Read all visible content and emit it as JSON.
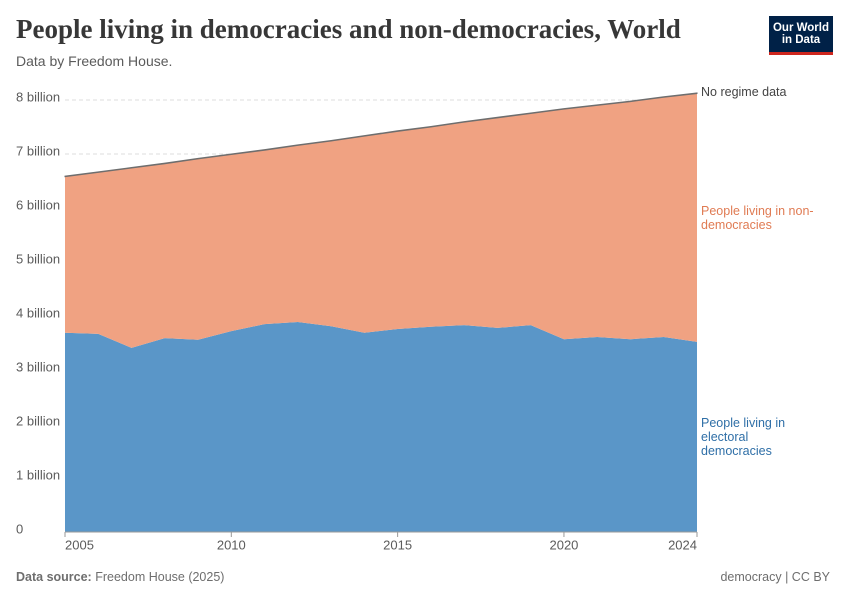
{
  "logo": "Our World in Data",
  "chart_data": {
    "type": "stacked_area",
    "title": "People living in democracies and non-democracies, World",
    "subtitle": "Data by Freedom House.",
    "source_label": "Data source:",
    "source": "Freedom House (2025)",
    "license": "democracy | CC BY",
    "x": [
      2005,
      2006,
      2007,
      2008,
      2009,
      2010,
      2011,
      2012,
      2013,
      2014,
      2015,
      2016,
      2017,
      2018,
      2019,
      2020,
      2021,
      2022,
      2023,
      2024
    ],
    "xlim": [
      2005,
      2024
    ],
    "xticks": [
      2005,
      2010,
      2015,
      2020,
      2024
    ],
    "ylim": [
      0,
      8
    ],
    "yticks": [
      0,
      {
        "value": 1,
        "label": "1 billion"
      },
      {
        "value": 2,
        "label": "2 billion"
      },
      {
        "value": 3,
        "label": "3 billion"
      },
      {
        "value": 4,
        "label": "4 billion"
      },
      {
        "value": 5,
        "label": "5 billion"
      },
      {
        "value": 6,
        "label": "6 billion"
      },
      {
        "value": 7,
        "label": "7 billion"
      },
      {
        "value": 8,
        "label": "8 billion"
      }
    ],
    "grid": true,
    "series": [
      {
        "name": "People living in electoral democracies",
        "color": "#5a96c8",
        "label_color": "#2f6fa7",
        "values": [
          3.69,
          3.67,
          3.41,
          3.59,
          3.56,
          3.72,
          3.85,
          3.89,
          3.81,
          3.69,
          3.76,
          3.8,
          3.83,
          3.78,
          3.83,
          3.57,
          3.61,
          3.57,
          3.61,
          3.52
        ]
      },
      {
        "name": "People living in non-democracies",
        "color": "#f0a282",
        "label_color": "#e07b53",
        "values": [
          2.89,
          2.99,
          3.33,
          3.23,
          3.35,
          3.27,
          3.22,
          3.27,
          3.43,
          3.64,
          3.66,
          3.7,
          3.76,
          3.89,
          3.92,
          4.26,
          4.29,
          4.4,
          4.44,
          4.6
        ]
      },
      {
        "name": "No regime data",
        "color": "#6e6e6e",
        "label_color": "#444444",
        "values": [
          0.01,
          0.01,
          0.01,
          0.01,
          0.01,
          0.01,
          0.01,
          0.01,
          0.01,
          0.01,
          0.01,
          0.01,
          0.01,
          0.01,
          0.01,
          0.01,
          0.01,
          0.01,
          0.01,
          0.01
        ]
      }
    ]
  }
}
